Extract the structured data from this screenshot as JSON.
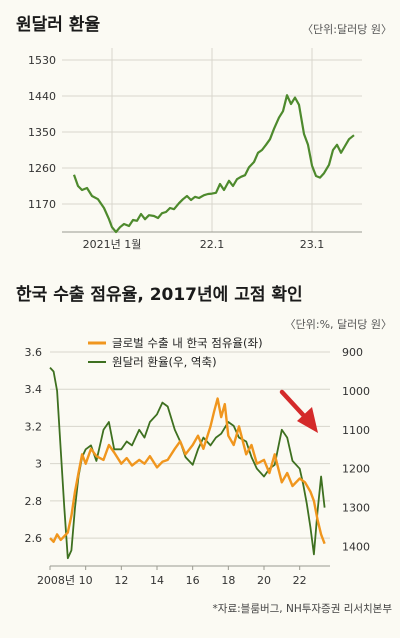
{
  "chart_data": [
    {
      "type": "line",
      "title": "원달러 환율",
      "unit_note": "〈단위:달러당 원〉",
      "ylim": [
        1100,
        1560
      ],
      "yticks": [
        1170,
        1260,
        1350,
        1440,
        1530
      ],
      "xlim": [
        2020.5,
        2023.5
      ],
      "xticks": [
        {
          "x": 2021.0,
          "label": "2021년 1월"
        },
        {
          "x": 2022.0,
          "label": "22.1"
        },
        {
          "x": 2023.0,
          "label": "23.1"
        }
      ],
      "grid": true,
      "series": [
        {
          "color": "#4e8a2d",
          "x": [
            2020.62,
            2020.66,
            2020.7,
            2020.75,
            2020.8,
            2020.86,
            2020.92,
            2020.97,
            2021.0,
            2021.04,
            2021.08,
            2021.12,
            2021.17,
            2021.21,
            2021.25,
            2021.29,
            2021.33,
            2021.37,
            2021.42,
            2021.46,
            2021.5,
            2021.54,
            2021.58,
            2021.62,
            2021.67,
            2021.71,
            2021.75,
            2021.79,
            2021.83,
            2021.87,
            2021.92,
            2021.96,
            2022.0,
            2022.04,
            2022.08,
            2022.12,
            2022.17,
            2022.21,
            2022.25,
            2022.29,
            2022.33,
            2022.37,
            2022.42,
            2022.46,
            2022.5,
            2022.54,
            2022.58,
            2022.62,
            2022.67,
            2022.71,
            2022.75,
            2022.79,
            2022.83,
            2022.87,
            2022.92,
            2022.96,
            2023.0,
            2023.04,
            2023.08,
            2023.12,
            2023.17,
            2023.21,
            2023.25,
            2023.29,
            2023.33,
            2023.37,
            2023.42
          ],
          "values": [
            1243,
            1215,
            1205,
            1210,
            1190,
            1182,
            1160,
            1132,
            1112,
            1100,
            1112,
            1120,
            1115,
            1130,
            1128,
            1145,
            1132,
            1142,
            1140,
            1135,
            1147,
            1150,
            1160,
            1157,
            1172,
            1182,
            1190,
            1180,
            1188,
            1185,
            1192,
            1195,
            1196,
            1198,
            1220,
            1205,
            1228,
            1215,
            1232,
            1238,
            1242,
            1262,
            1275,
            1298,
            1305,
            1318,
            1332,
            1358,
            1386,
            1402,
            1442,
            1420,
            1436,
            1418,
            1345,
            1318,
            1266,
            1240,
            1236,
            1247,
            1268,
            1305,
            1318,
            1298,
            1315,
            1332,
            1342
          ]
        }
      ]
    },
    {
      "type": "line",
      "title": "한국 수출 점유율, 2017년에 고점 확인",
      "unit_note": "〈단위:%, 달러당 원〉",
      "xlim": [
        2008.0,
        2023.7
      ],
      "xticks": [
        "2008년",
        "10",
        "12",
        "14",
        "16",
        "18",
        "20",
        "22"
      ],
      "xtick_values": [
        2008,
        2010,
        2012,
        2014,
        2016,
        2018,
        2020,
        2022
      ],
      "ylim_left": [
        2.45,
        3.6
      ],
      "yticks_left": [
        "2.6",
        "2.8",
        "3",
        "3.2",
        "3.4",
        "3.6"
      ],
      "ylim_right_inverted": [
        1450,
        900
      ],
      "yticks_right": [
        "900",
        "1000",
        "1100",
        "1200",
        "1300",
        "1400"
      ],
      "grid": true,
      "annotation": "red downward arrow near 2022",
      "series": [
        {
          "name": "글로벌 수출 내 한국 점유율(좌)",
          "axis": "left",
          "color": "#f0961e",
          "x": [
            2008.0,
            2008.2,
            2008.4,
            2008.6,
            2008.8,
            2009.0,
            2009.2,
            2009.4,
            2009.6,
            2009.8,
            2010.0,
            2010.3,
            2010.6,
            2011.0,
            2011.3,
            2011.6,
            2012.0,
            2012.3,
            2012.6,
            2013.0,
            2013.3,
            2013.6,
            2014.0,
            2014.3,
            2014.6,
            2015.0,
            2015.3,
            2015.6,
            2016.0,
            2016.3,
            2016.6,
            2017.0,
            2017.2,
            2017.4,
            2017.6,
            2017.8,
            2018.0,
            2018.3,
            2018.6,
            2019.0,
            2019.3,
            2019.6,
            2020.0,
            2020.3,
            2020.6,
            2021.0,
            2021.3,
            2021.6,
            2022.0,
            2022.3,
            2022.6,
            2022.8,
            2023.0,
            2023.2,
            2023.4
          ],
          "values": [
            2.6,
            2.58,
            2.62,
            2.59,
            2.61,
            2.63,
            2.72,
            2.85,
            2.95,
            3.05,
            3.0,
            3.08,
            3.04,
            3.02,
            3.1,
            3.06,
            3.0,
            3.03,
            2.99,
            3.02,
            3.0,
            3.04,
            2.98,
            3.01,
            3.02,
            3.08,
            3.12,
            3.05,
            3.1,
            3.15,
            3.08,
            3.2,
            3.28,
            3.35,
            3.25,
            3.32,
            3.15,
            3.1,
            3.2,
            3.05,
            3.1,
            3.0,
            3.02,
            2.95,
            3.05,
            2.9,
            2.95,
            2.88,
            2.92,
            2.9,
            2.85,
            2.8,
            2.7,
            2.62,
            2.57
          ]
        },
        {
          "name": "원달러 환율(우, 역축)",
          "axis": "right",
          "color": "#3e7020",
          "x": [
            2008.0,
            2008.2,
            2008.4,
            2008.6,
            2008.8,
            2009.0,
            2009.2,
            2009.4,
            2009.6,
            2009.8,
            2010.0,
            2010.3,
            2010.6,
            2011.0,
            2011.3,
            2011.6,
            2012.0,
            2012.3,
            2012.6,
            2013.0,
            2013.3,
            2013.6,
            2014.0,
            2014.3,
            2014.6,
            2015.0,
            2015.3,
            2015.6,
            2016.0,
            2016.3,
            2016.6,
            2017.0,
            2017.3,
            2017.6,
            2018.0,
            2018.3,
            2018.6,
            2019.0,
            2019.3,
            2019.6,
            2020.0,
            2020.3,
            2020.6,
            2021.0,
            2021.3,
            2021.6,
            2022.0,
            2022.2,
            2022.4,
            2022.6,
            2022.8,
            2023.0,
            2023.2,
            2023.4
          ],
          "values": [
            940,
            950,
            1000,
            1150,
            1300,
            1430,
            1410,
            1300,
            1220,
            1170,
            1150,
            1140,
            1180,
            1100,
            1080,
            1150,
            1150,
            1130,
            1140,
            1100,
            1120,
            1080,
            1060,
            1030,
            1040,
            1100,
            1130,
            1170,
            1190,
            1150,
            1120,
            1140,
            1120,
            1110,
            1080,
            1090,
            1120,
            1130,
            1170,
            1200,
            1220,
            1200,
            1190,
            1100,
            1120,
            1180,
            1200,
            1240,
            1290,
            1350,
            1420,
            1310,
            1220,
            1300
          ]
        }
      ]
    }
  ],
  "source_note": "*자료:블룸버그, NH투자증권 리서치본부"
}
